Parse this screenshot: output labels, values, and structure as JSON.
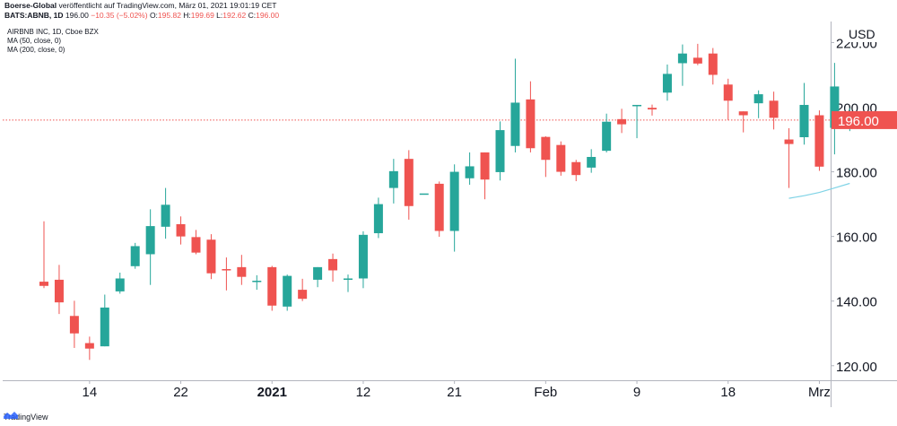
{
  "header": {
    "line1_publisher": "Boerse-Global",
    "line1_rest": "veröffentlicht auf TradingView.com, März 01, 2021 19:01:19 CET",
    "symbol": "BATS:ABNB, 1D",
    "last": "196.00",
    "change": "−10.35 (−5.02%)",
    "o_label": "O:",
    "o_val": "195.82",
    "h_label": "H:",
    "h_val": "199.69",
    "l_label": "L:",
    "l_val": "192.62",
    "c_label": "C:",
    "c_val": "196.00"
  },
  "legend": {
    "title": "AIRBNB INC, 1D, Cboe BZX",
    "ma50": "MA (50, close, 0)",
    "ma200": "MA (200, close, 0)"
  },
  "footer": {
    "brand": "TradingView"
  },
  "colors": {
    "up": "#26a69a",
    "down": "#ef5350",
    "ma": "#7fd3e6",
    "price_line": "#ef5350"
  },
  "chart_data": {
    "type": "candlestick",
    "currency": "USD",
    "y_ticks": [
      "120.00",
      "140.00",
      "160.00",
      "180.00",
      "200.00",
      "220.00"
    ],
    "x_ticks": [
      {
        "label": "14",
        "index": 3,
        "bold": false
      },
      {
        "label": "22",
        "index": 9,
        "bold": false
      },
      {
        "label": "2021",
        "index": 15,
        "bold": true
      },
      {
        "label": "12",
        "index": 21,
        "bold": false
      },
      {
        "label": "21",
        "index": 27,
        "bold": false
      },
      {
        "label": "Feb",
        "index": 33,
        "bold": false
      },
      {
        "label": "9",
        "index": 39,
        "bold": false
      },
      {
        "label": "18",
        "index": 45,
        "bold": false
      },
      {
        "label": "Mrz",
        "index": 51,
        "bold": false
      }
    ],
    "ylim": [
      115.5,
      226.5
    ],
    "last_price": "196.00",
    "candles": [
      {
        "o": 146.0,
        "h": 164.7,
        "l": 144.0,
        "c": 144.7
      },
      {
        "o": 146.6,
        "h": 151.2,
        "l": 136.0,
        "c": 139.6
      },
      {
        "o": 135.4,
        "h": 140.1,
        "l": 125.5,
        "c": 130.0
      },
      {
        "o": 127.0,
        "h": 129.0,
        "l": 121.8,
        "c": 125.3
      },
      {
        "o": 126.0,
        "h": 142.0,
        "l": 126.0,
        "c": 138.0
      },
      {
        "o": 143.0,
        "h": 148.8,
        "l": 142.3,
        "c": 147.0
      },
      {
        "o": 150.8,
        "h": 158.0,
        "l": 150.0,
        "c": 157.0
      },
      {
        "o": 154.5,
        "h": 168.4,
        "l": 145.0,
        "c": 163.2
      },
      {
        "o": 163.0,
        "h": 175.0,
        "l": 159.3,
        "c": 169.8
      },
      {
        "o": 163.8,
        "h": 166.2,
        "l": 157.5,
        "c": 160.0
      },
      {
        "o": 159.8,
        "h": 162.0,
        "l": 154.5,
        "c": 155.0
      },
      {
        "o": 159.0,
        "h": 160.7,
        "l": 146.8,
        "c": 148.6
      },
      {
        "o": 149.9,
        "h": 153.5,
        "l": 143.3,
        "c": 149.6
      },
      {
        "o": 150.5,
        "h": 154.3,
        "l": 145.0,
        "c": 147.5
      },
      {
        "o": 146.3,
        "h": 148.0,
        "l": 143.5,
        "c": 146.3
      },
      {
        "o": 150.5,
        "h": 150.9,
        "l": 137.0,
        "c": 138.6
      },
      {
        "o": 138.3,
        "h": 148.2,
        "l": 137.0,
        "c": 147.8
      },
      {
        "o": 143.5,
        "h": 146.9,
        "l": 140.0,
        "c": 140.7
      },
      {
        "o": 146.6,
        "h": 150.5,
        "l": 144.3,
        "c": 150.5
      },
      {
        "o": 153.0,
        "h": 154.7,
        "l": 146.0,
        "c": 149.5
      },
      {
        "o": 147.0,
        "h": 148.2,
        "l": 142.8,
        "c": 147.0
      },
      {
        "o": 147.0,
        "h": 161.6,
        "l": 144.0,
        "c": 160.5
      },
      {
        "o": 161.0,
        "h": 172.0,
        "l": 159.5,
        "c": 170.0
      },
      {
        "o": 175.0,
        "h": 184.0,
        "l": 170.2,
        "c": 180.2
      },
      {
        "o": 184.0,
        "h": 186.7,
        "l": 165.2,
        "c": 169.4
      },
      {
        "o": 173.3,
        "h": 173.3,
        "l": 173.3,
        "c": 173.3
      },
      {
        "o": 176.3,
        "h": 177.0,
        "l": 159.9,
        "c": 161.7
      },
      {
        "o": 161.7,
        "h": 182.3,
        "l": 155.3,
        "c": 180.0
      },
      {
        "o": 178.0,
        "h": 186.0,
        "l": 176.0,
        "c": 181.7
      },
      {
        "o": 186.0,
        "h": 186.0,
        "l": 171.5,
        "c": 177.6
      },
      {
        "o": 179.9,
        "h": 195.6,
        "l": 177.3,
        "c": 192.9
      },
      {
        "o": 188.0,
        "h": 215.0,
        "l": 186.0,
        "c": 201.4
      },
      {
        "o": 202.4,
        "h": 208.0,
        "l": 186.0,
        "c": 187.3
      },
      {
        "o": 190.8,
        "h": 191.0,
        "l": 178.4,
        "c": 183.7
      },
      {
        "o": 188.3,
        "h": 189.4,
        "l": 178.8,
        "c": 180.0
      },
      {
        "o": 183.0,
        "h": 183.7,
        "l": 177.1,
        "c": 179.0
      },
      {
        "o": 181.3,
        "h": 187.0,
        "l": 179.7,
        "c": 184.6
      },
      {
        "o": 186.5,
        "h": 198.0,
        "l": 186.0,
        "c": 195.5
      },
      {
        "o": 196.3,
        "h": 199.5,
        "l": 192.0,
        "c": 194.7
      },
      {
        "o": 200.7,
        "h": 200.7,
        "l": 190.4,
        "c": 200.7
      },
      {
        "o": 199.8,
        "h": 200.8,
        "l": 197.4,
        "c": 199.3
      },
      {
        "o": 204.5,
        "h": 213.2,
        "l": 202.0,
        "c": 210.3
      },
      {
        "o": 213.6,
        "h": 219.4,
        "l": 206.6,
        "c": 216.6
      },
      {
        "o": 215.3,
        "h": 219.6,
        "l": 213.0,
        "c": 213.5
      },
      {
        "o": 216.6,
        "h": 218.3,
        "l": 207.0,
        "c": 210.0
      },
      {
        "o": 207.0,
        "h": 208.8,
        "l": 196.0,
        "c": 202.0
      },
      {
        "o": 198.7,
        "h": 198.7,
        "l": 192.2,
        "c": 197.5
      },
      {
        "o": 201.2,
        "h": 205.2,
        "l": 196.6,
        "c": 204.0
      },
      {
        "o": 202.0,
        "h": 204.8,
        "l": 193.1,
        "c": 196.7
      },
      {
        "o": 190.0,
        "h": 193.5,
        "l": 175.0,
        "c": 188.6
      },
      {
        "o": 190.7,
        "h": 207.5,
        "l": 188.4,
        "c": 200.7
      },
      {
        "o": 197.5,
        "h": 199.0,
        "l": 180.3,
        "c": 181.6
      },
      {
        "o": 193.6,
        "h": 213.7,
        "l": 185.4,
        "c": 206.4
      },
      {
        "o": 195.8,
        "h": 199.7,
        "l": 192.6,
        "c": 196.0
      }
    ],
    "ma200": [
      {
        "index": 49,
        "value": 171.8
      },
      {
        "index": 50,
        "value": 172.6
      },
      {
        "index": 51,
        "value": 173.6
      },
      {
        "index": 52,
        "value": 175.0
      },
      {
        "index": 53,
        "value": 176.4
      }
    ]
  }
}
